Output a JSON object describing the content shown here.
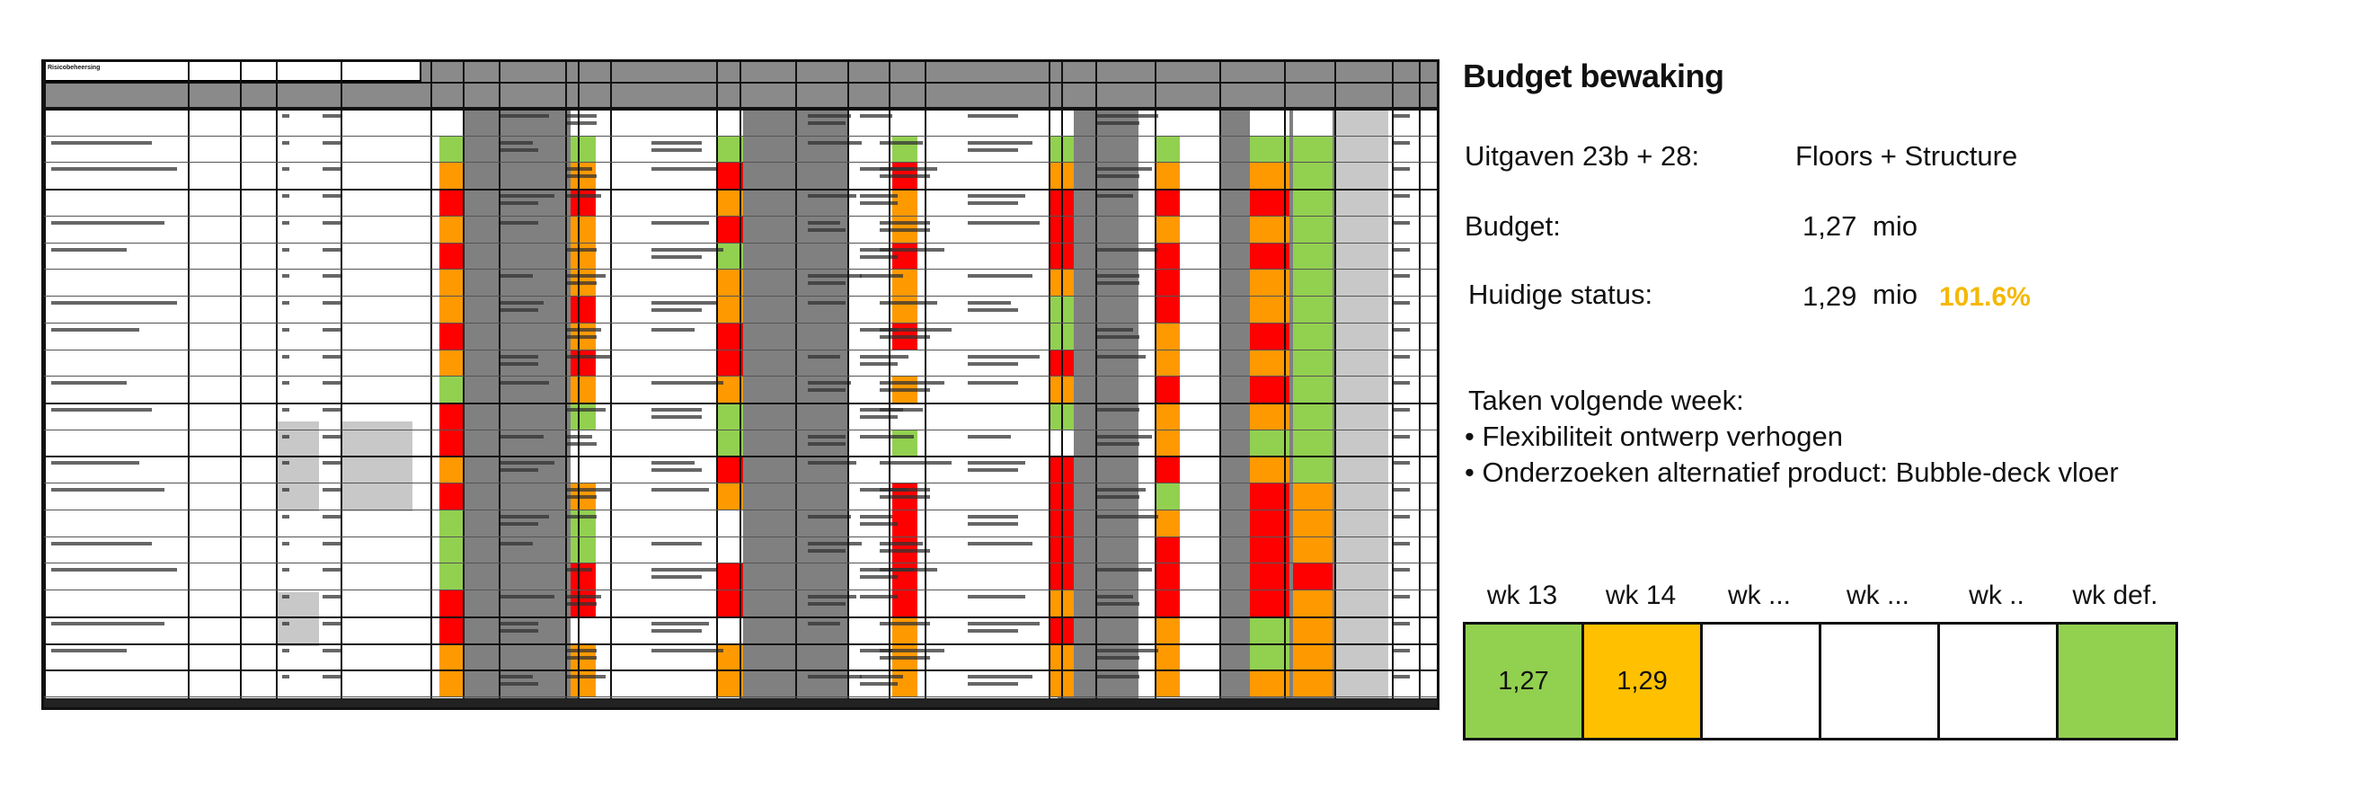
{
  "panel": {
    "title": "Budget bewaking",
    "spend_label": "Uitgaven 23b + 28:",
    "spend_value": "Floors + Structure",
    "budget_label": "Budget:",
    "budget_value": "1,27",
    "budget_unit": "mio",
    "status_label": "Huidige status:",
    "status_value": "1,29",
    "status_unit": "mio",
    "status_percent": "101.6%",
    "status_percent_color": "#F5B800",
    "tasks_heading": "Taken volgende week:",
    "tasks": [
      "• Flexibiliteit ontwerp verhogen",
      "• Onderzoeken alternatief product: Bubble-deck vloer"
    ]
  },
  "weeks": [
    {
      "label": "wk 13",
      "value": "1,27",
      "color": "#92D050"
    },
    {
      "label": "wk 14",
      "value": "1,29",
      "color": "#FFC000"
    },
    {
      "label": "wk ...",
      "value": "",
      "color": "#FFFFFF"
    },
    {
      "label": "wk ...",
      "value": "",
      "color": "#FFFFFF"
    },
    {
      "label": "wk ..",
      "value": "",
      "color": "#FFFFFF"
    },
    {
      "label": "wk def.",
      "value": "",
      "color": "#92D050"
    }
  ],
  "spreadsheet": {
    "title": "Risicobeheersing",
    "status_colors": [
      "#92D050",
      "#FF9900",
      "#FF0000",
      "#FFFFFF",
      "#F79646"
    ]
  }
}
